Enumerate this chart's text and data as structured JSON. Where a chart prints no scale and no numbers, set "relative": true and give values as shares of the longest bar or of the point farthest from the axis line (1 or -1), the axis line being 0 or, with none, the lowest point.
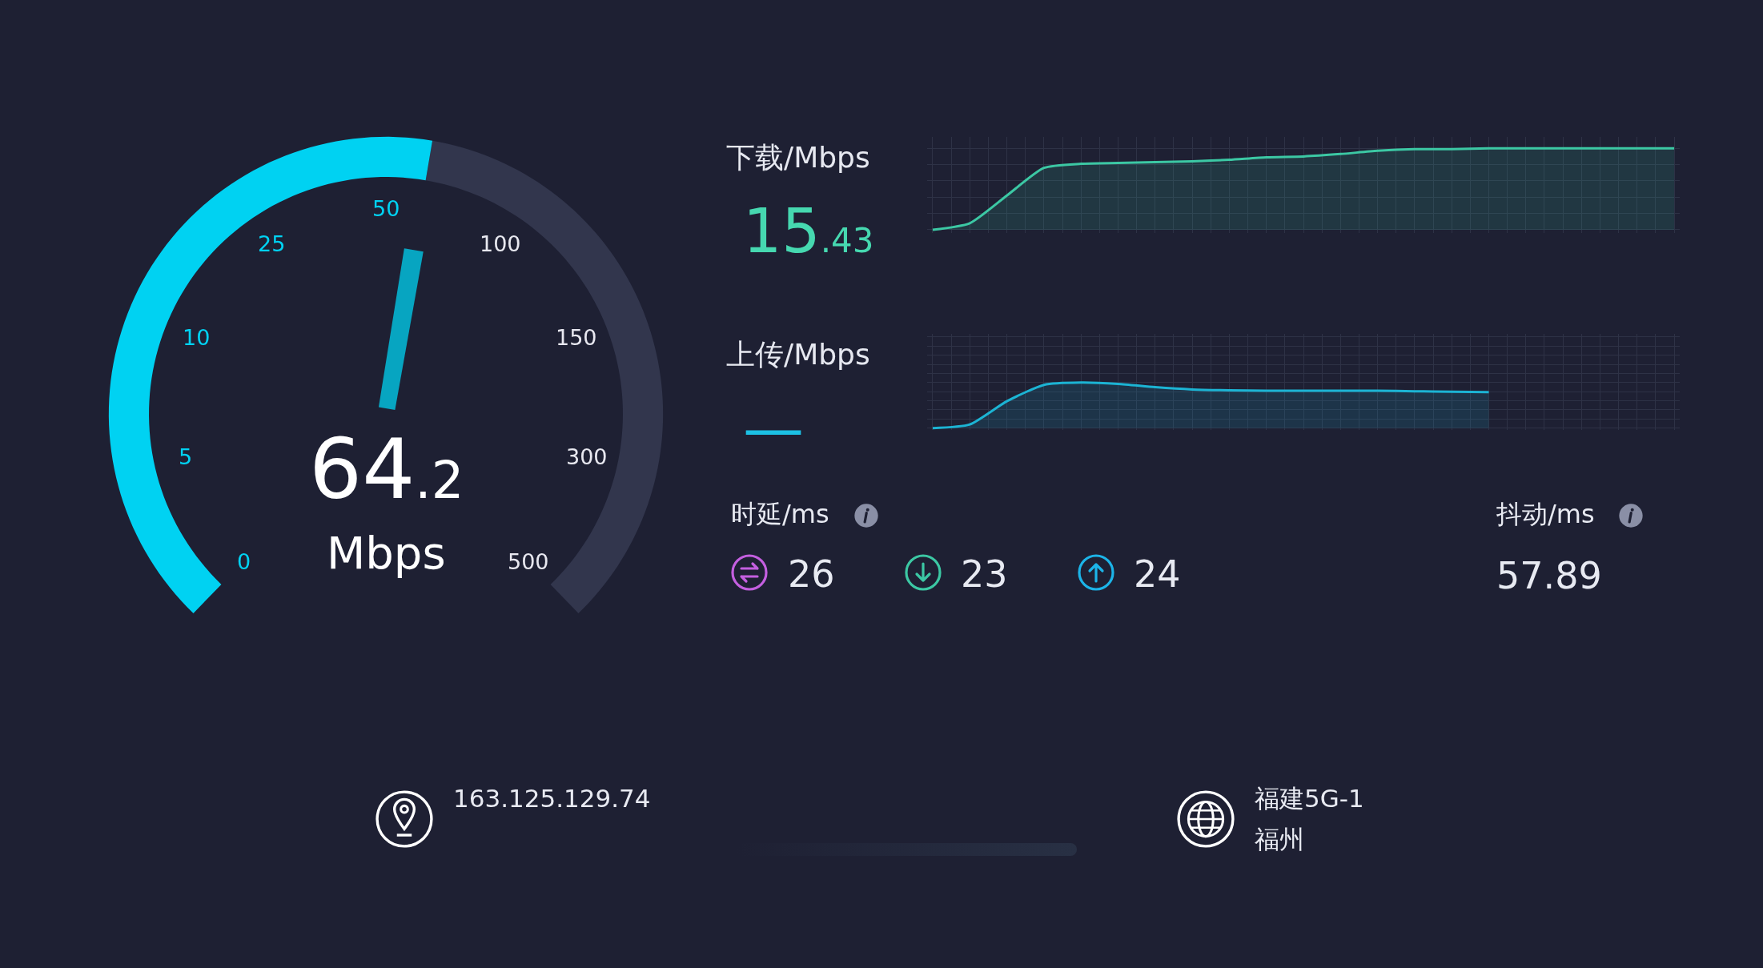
{
  "chart_data": [
    {
      "type": "other",
      "categories": [
        "0",
        "5",
        "10",
        "25",
        "50",
        "100",
        "150",
        "300",
        "500"
      ],
      "color": "#00d2f2",
      "annotations": [
        "64.2",
        "Mbps"
      ]
    },
    {
      "type": "area",
      "title": "下载/Mbps",
      "annotations": [
        "15.43"
      ],
      "relative": true,
      "grid": true,
      "categories": [
        null,
        null,
        null,
        null,
        null,
        null,
        null,
        null,
        null,
        null,
        null,
        null,
        null,
        null,
        null,
        null,
        null,
        null,
        null,
        null,
        null
      ],
      "series": [
        {
          "color": "#3cc8a4",
          "values": [
            0,
            0.08,
            0.42,
            0.76,
            0.81,
            0.82,
            0.83,
            0.84,
            0.86,
            0.89,
            0.9,
            0.93,
            0.97,
            0.99,
            0.99,
            1,
            1,
            1,
            1,
            1,
            1
          ]
        }
      ]
    },
    {
      "type": "area",
      "title": "上传/Mbps",
      "annotations": [
        "—"
      ],
      "relative": true,
      "grid": true,
      "categories": [
        null,
        null,
        null,
        null,
        null,
        null,
        null,
        null,
        null,
        null,
        null,
        null,
        null,
        null,
        null,
        null,
        null,
        null,
        null,
        null,
        null
      ],
      "series": [
        {
          "color": "#1cb4d4",
          "values": [
            0,
            0.08,
            0.59,
            0.95,
            1,
            0.97,
            0.9,
            0.85,
            0.83,
            0.82,
            0.82,
            0.82,
            0.82,
            0.81,
            0.8,
            0.79,
            null,
            null,
            null,
            null,
            null
          ]
        }
      ]
    },
    {
      "type": "other",
      "annotations": [
        "时延/ms",
        "26",
        "23",
        "24",
        "抖动/ms",
        "57.89",
        "163.125.129.74",
        "福建5G-1",
        "福州"
      ]
    }
  ]
}
